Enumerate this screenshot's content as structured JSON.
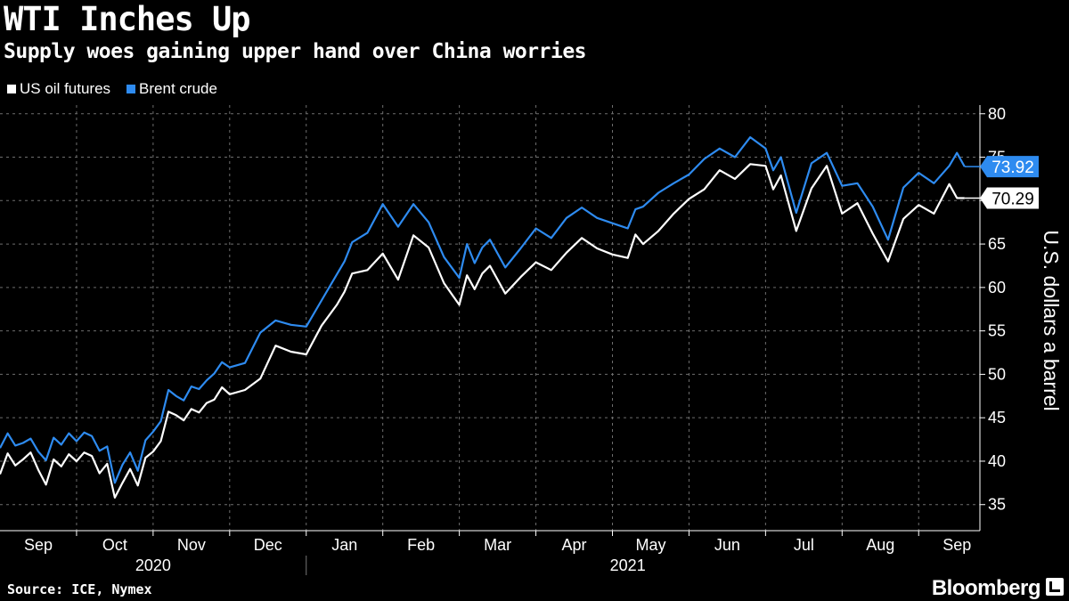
{
  "header": {
    "title": "WTI Inches Up",
    "subtitle": "Supply woes gaining upper hand over China worries"
  },
  "footer": {
    "source": "Source: ICE, Nymex",
    "brand": "Bloomberg"
  },
  "colors": {
    "wti": "#ffffff",
    "brent": "#2e8bf0",
    "grid": "#6e6e6e"
  },
  "chart_data": {
    "type": "line",
    "title": "WTI Inches Up",
    "subtitle": "Supply woes gaining upper hand over China worries",
    "xlabel": "",
    "ylabel": "U.S. dollars a barrel",
    "ylim": [
      32,
      81
    ],
    "yticks": [
      35,
      40,
      45,
      50,
      55,
      60,
      65,
      70,
      75,
      80
    ],
    "grid": true,
    "legend_position": "top-left",
    "x_unit": "months since 2020-09-01",
    "xlim": [
      0,
      12.8
    ],
    "month_labels": [
      "Sep",
      "Oct",
      "Nov",
      "Dec",
      "Jan",
      "Feb",
      "Mar",
      "Apr",
      "May",
      "Jun",
      "Jul",
      "Aug",
      "Sep"
    ],
    "year_labels": [
      "2020",
      "2021"
    ],
    "series": [
      {
        "name": "US oil futures",
        "color": "#ffffff",
        "last_label": "70.29",
        "x": [
          0,
          0.1,
          0.2,
          0.3,
          0.4,
          0.5,
          0.6,
          0.7,
          0.8,
          0.9,
          1.0,
          1.1,
          1.2,
          1.3,
          1.4,
          1.5,
          1.6,
          1.7,
          1.8,
          1.9,
          2.0,
          2.1,
          2.2,
          2.3,
          2.4,
          2.5,
          2.6,
          2.7,
          2.8,
          2.9,
          3.0,
          3.2,
          3.4,
          3.6,
          3.8,
          4.0,
          4.2,
          4.4,
          4.5,
          4.6,
          4.8,
          5.0,
          5.2,
          5.4,
          5.6,
          5.8,
          6.0,
          6.1,
          6.2,
          6.3,
          6.4,
          6.6,
          6.8,
          7.0,
          7.2,
          7.4,
          7.6,
          7.8,
          8.0,
          8.2,
          8.3,
          8.4,
          8.6,
          8.8,
          9.0,
          9.2,
          9.4,
          9.6,
          9.8,
          10.0,
          10.1,
          10.2,
          10.4,
          10.6,
          10.8,
          11.0,
          11.2,
          11.4,
          11.6,
          11.8,
          12.0,
          12.2,
          12.4,
          12.5,
          12.6
        ],
        "values": [
          38.5,
          40.9,
          39.5,
          40.2,
          41.0,
          39.0,
          37.3,
          40.2,
          39.4,
          40.8,
          40.0,
          41.0,
          40.6,
          38.6,
          39.7,
          35.8,
          37.5,
          39.1,
          37.2,
          40.4,
          41.1,
          42.3,
          45.7,
          45.3,
          44.7,
          46.0,
          45.6,
          46.7,
          47.1,
          48.5,
          47.7,
          48.2,
          49.5,
          53.3,
          52.6,
          52.3,
          55.6,
          58.0,
          59.5,
          61.6,
          62.0,
          63.9,
          60.9,
          66.0,
          64.6,
          60.5,
          58.0,
          61.4,
          59.8,
          61.6,
          62.5,
          59.3,
          61.2,
          62.9,
          62.0,
          64.0,
          65.7,
          64.5,
          63.8,
          63.4,
          66.1,
          65.0,
          66.5,
          68.5,
          70.2,
          71.3,
          73.5,
          72.5,
          74.2,
          74.0,
          71.3,
          72.9,
          66.5,
          71.4,
          74.0,
          68.5,
          69.7,
          66.2,
          63.0,
          67.9,
          69.5,
          68.5,
          71.9,
          70.3,
          70.29
        ]
      },
      {
        "name": "Brent crude",
        "color": "#2e8bf0",
        "last_label": "73.92",
        "x": [
          0,
          0.1,
          0.2,
          0.3,
          0.4,
          0.5,
          0.6,
          0.7,
          0.8,
          0.9,
          1.0,
          1.1,
          1.2,
          1.3,
          1.4,
          1.5,
          1.6,
          1.7,
          1.8,
          1.9,
          2.0,
          2.1,
          2.2,
          2.3,
          2.4,
          2.5,
          2.6,
          2.7,
          2.8,
          2.9,
          3.0,
          3.2,
          3.4,
          3.6,
          3.8,
          4.0,
          4.2,
          4.4,
          4.5,
          4.6,
          4.8,
          5.0,
          5.2,
          5.4,
          5.6,
          5.8,
          6.0,
          6.1,
          6.2,
          6.3,
          6.4,
          6.6,
          6.8,
          7.0,
          7.2,
          7.4,
          7.6,
          7.8,
          8.0,
          8.2,
          8.3,
          8.4,
          8.6,
          8.8,
          9.0,
          9.2,
          9.4,
          9.6,
          9.8,
          10.0,
          10.1,
          10.2,
          10.4,
          10.6,
          10.8,
          11.0,
          11.2,
          11.4,
          11.6,
          11.8,
          12.0,
          12.2,
          12.4,
          12.5,
          12.6
        ],
        "values": [
          41.5,
          43.2,
          41.8,
          42.1,
          42.6,
          41.1,
          40.1,
          42.7,
          41.9,
          43.2,
          42.3,
          43.3,
          42.9,
          41.2,
          41.7,
          37.5,
          39.6,
          41.0,
          38.9,
          42.4,
          43.4,
          44.6,
          48.2,
          47.5,
          47.0,
          48.6,
          48.3,
          49.3,
          50.1,
          51.4,
          50.8,
          51.3,
          54.8,
          56.2,
          55.7,
          55.5,
          58.5,
          61.5,
          63.0,
          65.2,
          66.3,
          69.6,
          67.0,
          69.6,
          67.5,
          63.5,
          61.1,
          65.0,
          62.8,
          64.6,
          65.5,
          62.3,
          64.5,
          66.8,
          65.7,
          68.0,
          69.2,
          68.0,
          67.4,
          66.8,
          69.0,
          69.3,
          70.9,
          72.0,
          73.0,
          74.8,
          76.0,
          75.0,
          77.3,
          76.0,
          73.5,
          75.0,
          68.6,
          74.3,
          75.5,
          71.7,
          72.0,
          69.3,
          65.5,
          71.5,
          73.2,
          72.0,
          74.0,
          75.5,
          73.92
        ]
      }
    ]
  }
}
